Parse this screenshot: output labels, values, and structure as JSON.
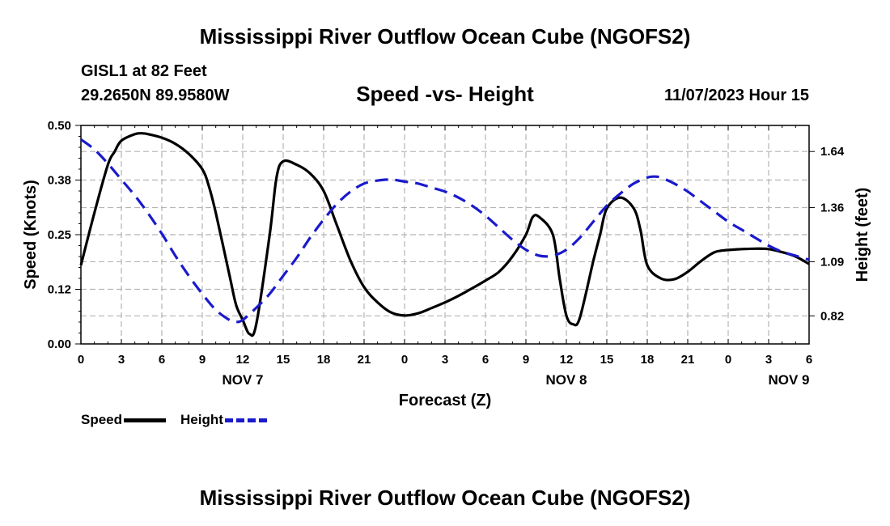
{
  "header": {
    "title": "Mississippi River Outflow Ocean Cube (NGOFS2)",
    "station": "GISL1 at 82 Feet",
    "coords": "29.2650N  89.9580W",
    "subtitle": "Speed -vs- Height",
    "datetime": "11/07/2023 Hour 15"
  },
  "footer": {
    "title": "Mississippi River Outflow Ocean Cube (NGOFS2)"
  },
  "legend": {
    "speed_label": "Speed",
    "height_label": "Height"
  },
  "colors": {
    "speed": "#000000",
    "height": "#1a1acc",
    "grid": "#b4b4b4"
  },
  "chart_data": {
    "type": "line",
    "xlabel": "Forecast (Z)",
    "ylabel_left": "Speed (Knots)",
    "ylabel_right": "Height (feet)",
    "xlim": [
      0,
      54
    ],
    "ylim_left": [
      0,
      0.5
    ],
    "ylim_right": [
      0.68,
      1.77
    ],
    "x_ticks": [
      0,
      3,
      6,
      9,
      12,
      15,
      18,
      21,
      24,
      27,
      30,
      33,
      36,
      39,
      42,
      45,
      48,
      51,
      54
    ],
    "x_tick_labels": [
      "0",
      "3",
      "6",
      "9",
      "12",
      "15",
      "18",
      "21",
      "0",
      "3",
      "6",
      "9",
      "12",
      "15",
      "18",
      "21",
      "0",
      "3",
      "6"
    ],
    "date_labels": [
      {
        "x": 12,
        "label": "NOV 7"
      },
      {
        "x": 36,
        "label": "NOV 8"
      },
      {
        "x": 52.5,
        "label": "NOV 9"
      }
    ],
    "y_left_ticks": [
      0.0,
      0.125,
      0.25,
      0.375,
      0.5
    ],
    "y_left_tick_labels": [
      "0.00",
      "0.12",
      "0.25",
      "0.38",
      "0.50"
    ],
    "y_right_ticks": [
      0.82,
      1.09,
      1.36,
      1.64
    ],
    "y_right_tick_labels": [
      "0.82",
      "1.09",
      "1.36",
      "1.64"
    ],
    "grid": true,
    "series": [
      {
        "name": "Speed",
        "axis": "left",
        "style": "solid",
        "x": [
          0,
          1,
          2,
          2.5,
          3,
          4,
          4.5,
          5,
          6,
          7,
          8,
          9,
          9.5,
          10,
          11,
          11.5,
          12,
          12.5,
          13,
          14,
          14.5,
          15,
          16,
          17,
          18,
          19,
          20,
          21,
          22,
          23,
          24,
          25,
          26,
          27,
          28,
          29,
          30,
          31,
          32,
          33,
          33.5,
          34,
          35,
          35.5,
          36,
          36.5,
          37,
          38,
          38.5,
          39,
          40,
          41,
          41.5,
          42,
          43,
          44,
          45,
          46,
          47,
          48,
          49,
          50,
          51,
          52,
          53,
          54
        ],
        "values": [
          0.18,
          0.3,
          0.41,
          0.44,
          0.465,
          0.48,
          0.482,
          0.48,
          0.472,
          0.458,
          0.435,
          0.4,
          0.36,
          0.3,
          0.16,
          0.09,
          0.055,
          0.023,
          0.045,
          0.25,
          0.38,
          0.418,
          0.41,
          0.39,
          0.35,
          0.27,
          0.19,
          0.13,
          0.095,
          0.072,
          0.065,
          0.07,
          0.082,
          0.095,
          0.11,
          0.127,
          0.145,
          0.165,
          0.2,
          0.25,
          0.29,
          0.29,
          0.25,
          0.15,
          0.065,
          0.045,
          0.06,
          0.19,
          0.25,
          0.31,
          0.335,
          0.31,
          0.26,
          0.18,
          0.15,
          0.148,
          0.165,
          0.19,
          0.21,
          0.215,
          0.217,
          0.218,
          0.217,
          0.21,
          0.2,
          0.183
        ]
      },
      {
        "name": "Height",
        "axis": "right",
        "style": "dashed",
        "x": [
          0,
          1,
          2,
          3,
          4,
          5,
          6,
          7,
          8,
          9,
          10,
          11,
          11.5,
          12,
          13,
          14,
          15,
          16,
          17,
          18,
          19,
          20,
          21,
          22,
          23,
          24,
          25,
          26,
          27,
          28,
          29,
          30,
          31,
          32,
          33,
          34,
          35,
          36,
          37,
          38,
          39,
          40,
          41,
          42,
          42.5,
          43,
          44,
          45,
          46,
          47,
          48,
          49,
          50,
          51,
          52,
          53,
          54
        ],
        "values": [
          1.7,
          1.65,
          1.58,
          1.5,
          1.42,
          1.33,
          1.23,
          1.12,
          1.02,
          0.93,
          0.85,
          0.8,
          0.79,
          0.8,
          0.86,
          0.93,
          1.02,
          1.11,
          1.21,
          1.3,
          1.38,
          1.44,
          1.48,
          1.495,
          1.5,
          1.49,
          1.48,
          1.46,
          1.44,
          1.41,
          1.37,
          1.32,
          1.26,
          1.2,
          1.15,
          1.12,
          1.12,
          1.15,
          1.21,
          1.29,
          1.37,
          1.43,
          1.48,
          1.51,
          1.515,
          1.51,
          1.48,
          1.44,
          1.39,
          1.34,
          1.29,
          1.25,
          1.21,
          1.17,
          1.14,
          1.12,
          1.1
        ]
      }
    ]
  }
}
